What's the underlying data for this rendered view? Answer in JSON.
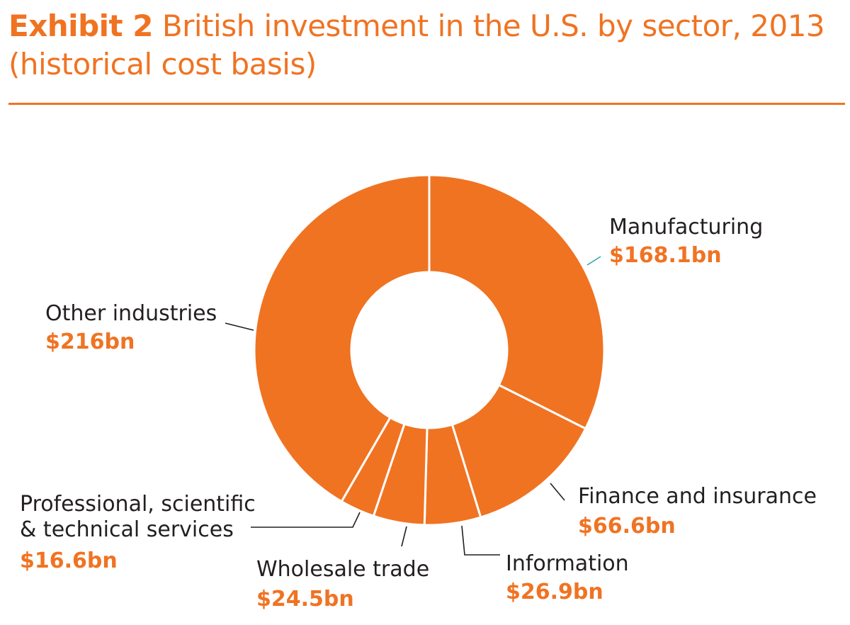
{
  "page": {
    "title_prefix": "Exhibit 2",
    "title_text": " British investment in the U.S. by sector, 2013 (historical cost basis)"
  },
  "chart_data": {
    "type": "pie",
    "variant": "donut",
    "title": "Exhibit 2 British investment in the U.S. by sector, 2013 (historical cost basis)",
    "unit": "$bn",
    "slices": [
      {
        "name": "Manufacturing",
        "value": 168.1,
        "value_label": "$168.1bn",
        "label_lines": [
          "Manufacturing"
        ]
      },
      {
        "name": "Finance and insurance",
        "value": 66.6,
        "value_label": "$66.6bn",
        "label_lines": [
          "Finance and insurance"
        ]
      },
      {
        "name": "Information",
        "value": 26.9,
        "value_label": "$26.9bn",
        "label_lines": [
          "Information"
        ]
      },
      {
        "name": "Wholesale trade",
        "value": 24.5,
        "value_label": "$24.5bn",
        "label_lines": [
          "Wholesale trade"
        ]
      },
      {
        "name": "Professional, scientific & technical services",
        "value": 16.6,
        "value_label": "$16.6bn",
        "label_lines": [
          "Professional, scientific",
          "& technical services"
        ]
      },
      {
        "name": "Other industries",
        "value": 216,
        "value_label": "$216bn",
        "label_lines": [
          "Other industries"
        ]
      }
    ],
    "colors": {
      "slice": "#f07322",
      "separator": "#ffffff",
      "leader": "#231f20",
      "manufacturing_leader": "#2aa7b8",
      "label": "#231f20",
      "value": "#f07322"
    },
    "legend": "none"
  }
}
